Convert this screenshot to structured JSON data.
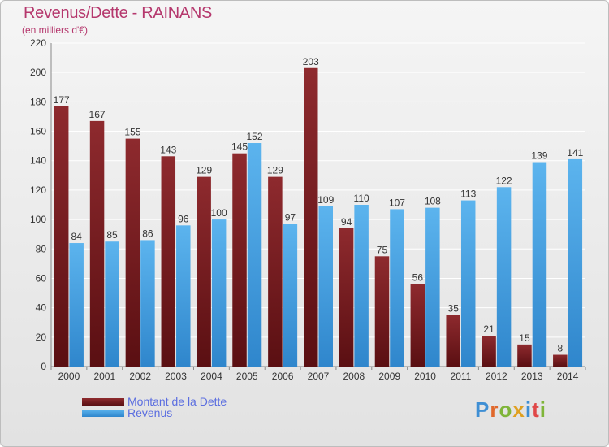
{
  "header": {
    "title": "Revenus/Dette - RAINANS",
    "subtitle": "(en milliers d'€)"
  },
  "logo": {
    "text": "Proxiti"
  },
  "colors": {
    "dette": "#7a1f23",
    "revenus": "#3f9de0",
    "title": "#b5386d",
    "legend_text": "#5b6ee0"
  },
  "chart_data": {
    "type": "bar",
    "categories": [
      "2000",
      "2001",
      "2002",
      "2003",
      "2004",
      "2005",
      "2006",
      "2007",
      "2008",
      "2009",
      "2010",
      "2011",
      "2012",
      "2013",
      "2014"
    ],
    "series": [
      {
        "name": "Montant de la Dette",
        "values": [
          177,
          167,
          155,
          143,
          129,
          145,
          129,
          203,
          94,
          75,
          56,
          35,
          21,
          15,
          8
        ]
      },
      {
        "name": "Revenus",
        "values": [
          84,
          85,
          86,
          96,
          100,
          152,
          97,
          109,
          110,
          107,
          108,
          113,
          122,
          139,
          141
        ]
      }
    ],
    "title": "Revenus/Dette - RAINANS",
    "ylabel": "(en milliers d'€)",
    "ylim": [
      0,
      220
    ],
    "yticks": [
      0,
      20,
      40,
      60,
      80,
      100,
      120,
      140,
      160,
      180,
      200,
      220
    ],
    "grid": true,
    "legend": "bottom-left"
  }
}
